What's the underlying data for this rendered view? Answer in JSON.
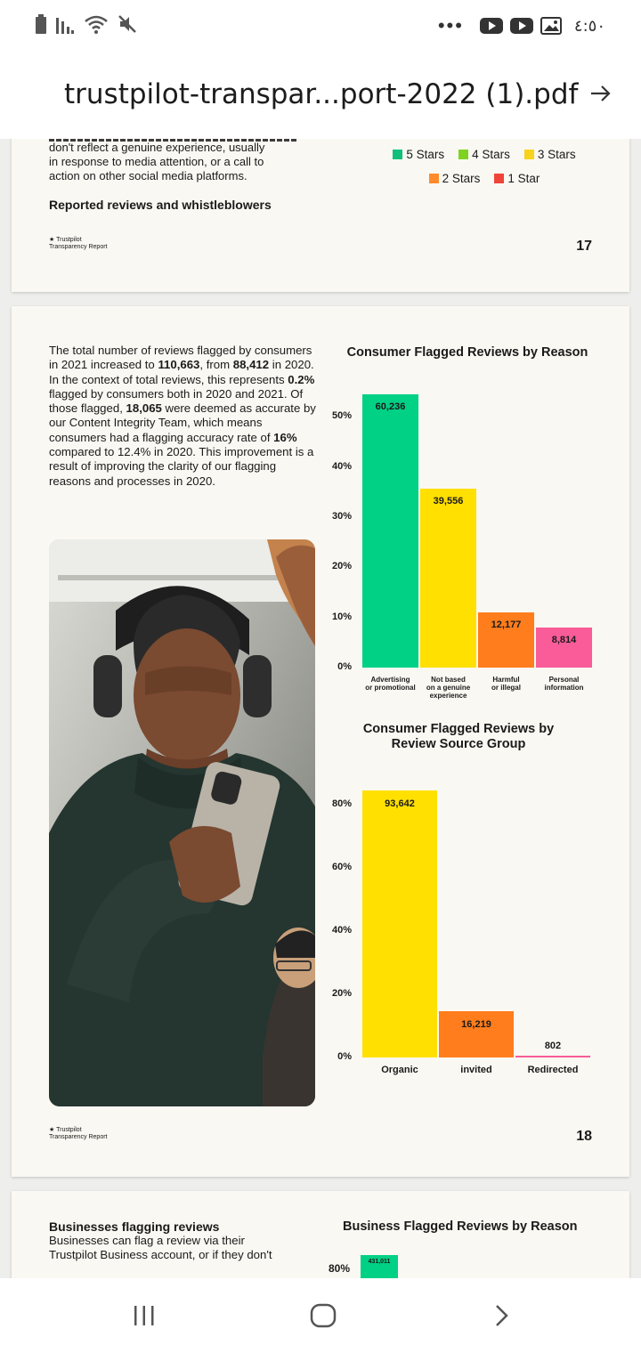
{
  "status_bar": {
    "time": "٤:٥٠",
    "dots": "•••"
  },
  "header": {
    "title": "trustpilot-transpar...port-2022 (1).pdf"
  },
  "page17": {
    "text_lines": [
      "don't reflect a genuine experience, usually",
      "in response to media attention, or a call to",
      "action on other social media platforms."
    ],
    "heading": "Reported reviews and whistleblowers",
    "legend": [
      {
        "label": "5 Stars",
        "color": "#0fbf7a"
      },
      {
        "label": "4 Stars",
        "color": "#7ed321"
      },
      {
        "label": "3 Stars",
        "color": "#f8d21c"
      },
      {
        "label": "2 Stars",
        "color": "#ff8a2b"
      },
      {
        "label": "1 Star",
        "color": "#f04438"
      }
    ],
    "brand_name": "Trustpilot",
    "brand_sub": "Transparency Report",
    "page_number": "17"
  },
  "page18": {
    "paragraph_parts": [
      {
        "t": "The total number of reviews flagged by consumers in 2021 increased to ",
        "b": false
      },
      {
        "t": "110,663",
        "b": true
      },
      {
        "t": ", from ",
        "b": false
      },
      {
        "t": "88,412",
        "b": true
      },
      {
        "t": " in 2020. In the context of total reviews, this represents ",
        "b": false
      },
      {
        "t": "0.2%",
        "b": true
      },
      {
        "t": " flagged by consumers both in 2020 and 2021. Of those flagged, ",
        "b": false
      },
      {
        "t": "18,065",
        "b": true
      },
      {
        "t": " were deemed as accurate by our Content Integrity Team, which means consumers had a flagging accuracy rate of ",
        "b": false
      },
      {
        "t": "16%",
        "b": true
      },
      {
        "t": " compared to 12.4% in 2020. This improvement is a result of improving the clarity of our flagging reasons and processes in 2020.",
        "b": false
      }
    ],
    "brand_name": "Trustpilot",
    "brand_sub": "Transparency Report",
    "page_number": "18"
  },
  "page19": {
    "heading": "Businesses flagging reviews",
    "text_lines": [
      "Businesses can flag a review via their",
      "Trustpilot Business account, or if they don't"
    ],
    "chart_title": "Business Flagged Reviews by Reason",
    "visible_axis_label": "80%",
    "visible_bar_value": "431,011"
  },
  "chart_data": [
    {
      "type": "bar",
      "title": "Consumer Flagged Reviews by Reason",
      "categories": [
        "Advertising or promotional",
        "Not based on a genuine experience",
        "Harmful or illegal",
        "Personal information"
      ],
      "category_lines": [
        [
          "Advertising",
          "or promotional"
        ],
        [
          "Not based",
          "on a genuine",
          "experience"
        ],
        [
          "Harmful",
          "or illegal"
        ],
        [
          "Personal",
          "information"
        ]
      ],
      "values": [
        60236,
        39556,
        12177,
        8814
      ],
      "value_labels": [
        "60,236",
        "39,556",
        "12,177",
        "8,814"
      ],
      "percent_values": [
        54.4,
        35.7,
        11.0,
        8.0
      ],
      "colors": [
        "#00d185",
        "#ffe000",
        "#ff7d1c",
        "#f95c99"
      ],
      "yticks": [
        "0%",
        "10%",
        "20%",
        "30%",
        "40%",
        "50%"
      ],
      "ylim": [
        0,
        55
      ]
    },
    {
      "type": "bar",
      "title": "Consumer Flagged Reviews by Review Source Group",
      "title_lines": [
        "Consumer Flagged Reviews by",
        "Review Source Group"
      ],
      "categories": [
        "Organic",
        "invited",
        "Redirected"
      ],
      "values": [
        93642,
        16219,
        802
      ],
      "value_labels": [
        "93,642",
        "16,219",
        "802"
      ],
      "percent_values": [
        84.6,
        14.7,
        0.7
      ],
      "colors": [
        "#ffe000",
        "#ff7d1c",
        "#f95c99"
      ],
      "yticks": [
        "0%",
        "20%",
        "40%",
        "60%",
        "80%"
      ],
      "ylim": [
        0,
        90
      ]
    }
  ],
  "nav": {
    "recent": "recent-apps",
    "home": "home",
    "back": "back"
  }
}
